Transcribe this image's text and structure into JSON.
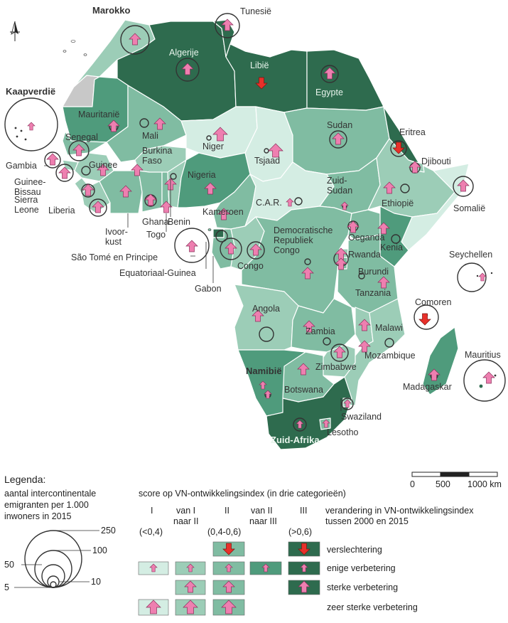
{
  "colors": {
    "cat1": "#d4ede3",
    "cat1to2": "#9ccdb7",
    "cat2": "#80bca2",
    "cat2to3": "#4f9b7c",
    "cat3": "#2e6b4e",
    "grey": "#c8c8c8",
    "arrow": "#ee7fb0",
    "arrow_bad": "#e8302a",
    "border": "#ffffff"
  },
  "icons": {
    "north_arrow": "north-arrow-icon"
  },
  "countries": {
    "marokko": "Marokko",
    "tunesie": "Tunesië",
    "algerije": "Algerije",
    "libie": "Libië",
    "egypte": "Egypte",
    "kaapverdie": "Kaapverdië",
    "mauritanie": "Mauritanië",
    "mali": "Mali",
    "niger": "Niger",
    "tsjaad": "Tsjaad",
    "sudan": "Sudan",
    "eritrea": "Eritrea",
    "djibouti": "Djibouti",
    "senegal": "Senegal",
    "gambia": "Gambia",
    "guinee_bissau": "Guinee-\nBissau",
    "guinee": "Guinee",
    "burkina_faso": "Burkina\nFaso",
    "sierra_leone": "Sierra\nLeone",
    "liberia": "Liberia",
    "ivoorkust": "Ivoor-\nkust",
    "ghana": "Ghana",
    "togo": "Togo",
    "benin": "Benin",
    "nigeria": "Nigeria",
    "zuid_sudan": "Zuid-\nSudan",
    "ethiopie": "Ethiopië",
    "somalie": "Somalië",
    "car": "C.A.R.",
    "kameroen": "Kameroen",
    "sao_tome": "São Tomé en Principe",
    "equatoriaal_guinea": "Equatoriaal-Guinea",
    "gabon": "Gabon",
    "congo": "Congo",
    "drc": "Democratische\nRepubliek\nCongo",
    "oeganda": "Oeganda",
    "kenia": "Kenia",
    "rwanda": "Rwanda",
    "burundi": "Burundi",
    "tanzania": "Tanzania",
    "seychellen": "Seychellen",
    "comoren": "Comoren",
    "angola": "Angola",
    "zambia": "Zambia",
    "malawi": "Malawi",
    "mozambique": "Mozambique",
    "zimbabwe": "Zimbabwe",
    "namibie": "Namibië",
    "botswana": "Botswana",
    "madagaskar": "Madagaskar",
    "mauritius": "Mauritius",
    "swaziland": "Swaziland",
    "lesotho": "Lesotho",
    "zuid_afrika": "Zuid-Afrika"
  },
  "scale": {
    "tick0": "0",
    "tick1": "500",
    "tick2": "1000 km"
  },
  "legend": {
    "title": "Legenda:",
    "emig_title_1": "aantal intercontinentale",
    "emig_title_2": "emigranten per 1.000",
    "emig_title_3": "inwoners in 2015",
    "sizes": {
      "s250": "250",
      "s100": "100",
      "s50": "50",
      "s10": "10",
      "s5": "5"
    },
    "hdi_title": "score op VN-ontwikkelingsindex (in drie categorieën)",
    "col1": "I",
    "col2": "van I\nnaar II",
    "col3": "II",
    "col4": "van II\nnaar III",
    "col5": "III",
    "range1": "(<0,4)",
    "range3": "(0,4-0,6)",
    "range5": "(>0,6)",
    "change_title": "verandering in VN-ontwikkelingsindex\ntussen 2000 en 2015",
    "row_worse": "verslechtering",
    "row_some": "enige verbetering",
    "row_strong": "sterke verbetering",
    "row_very": "zeer sterke verbetering"
  }
}
